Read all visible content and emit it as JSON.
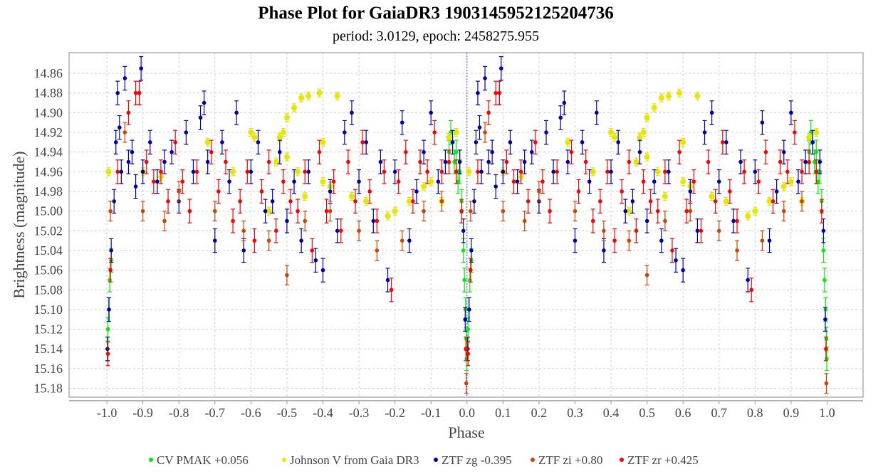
{
  "chart_data": {
    "type": "scatter",
    "title": "Phase Plot for GaiaDR3 1903145952125204736",
    "subtitle": "period: 3.0129, epoch: 2458275.955",
    "xlabel": "Phase",
    "ylabel": "Brightness (magnitude)",
    "xlim": [
      -1.105,
      1.1
    ],
    "ylim": [
      15.189,
      14.839
    ],
    "y_inverted": true,
    "grid": true,
    "legend_placement": "bottom",
    "x_ticks": [
      "-1.0",
      "-0.9",
      "-0.8",
      "-0.7",
      "-0.6",
      "-0.5",
      "-0.4",
      "-0.3",
      "-0.2",
      "-0.1",
      "0.0",
      "0.1",
      "0.2",
      "0.3",
      "0.4",
      "0.5",
      "0.6",
      "0.7",
      "0.8",
      "0.9",
      "1.0"
    ],
    "y_ticks": [
      "14.86",
      "14.88",
      "14.90",
      "14.92",
      "14.94",
      "14.96",
      "14.98",
      "15.00",
      "15.02",
      "15.04",
      "15.06",
      "15.08",
      "15.10",
      "15.12",
      "15.14",
      "15.16",
      "15.18"
    ],
    "note_points_repeated_at_phase_minus_1": true,
    "series": [
      {
        "name": "CV PMAK +0.056",
        "color": "#00ee00",
        "error": 0.012,
        "points": [
          [
            0.95,
            14.94
          ],
          [
            0.955,
            14.92
          ],
          [
            0.96,
            14.93
          ],
          [
            0.965,
            14.95
          ],
          [
            0.97,
            14.96
          ],
          [
            0.97,
            14.94
          ],
          [
            0.975,
            14.97
          ],
          [
            0.98,
            14.95
          ],
          [
            0.98,
            14.96
          ],
          [
            0.985,
            14.99
          ],
          [
            0.99,
            15.04
          ],
          [
            0.993,
            15.07
          ],
          [
            0.996,
            15.1
          ],
          [
            0.998,
            15.13
          ],
          [
            0.999,
            15.15
          ],
          [
            0.001,
            15.14
          ],
          [
            0.003,
            15.12
          ],
          [
            0.005,
            15.1
          ],
          [
            0.008,
            15.07
          ],
          [
            0.012,
            15.05
          ]
        ]
      },
      {
        "name": "Johnson V from Gaia DR3",
        "color": "#e6e600",
        "error": 0.004,
        "points": [
          [
            0.005,
            14.96
          ],
          [
            0.1,
            14.96
          ],
          [
            0.15,
            14.965
          ],
          [
            0.28,
            14.93
          ],
          [
            0.35,
            14.96
          ],
          [
            0.4,
            14.92
          ],
          [
            0.41,
            14.925
          ],
          [
            0.45,
            15.0
          ],
          [
            0.47,
            14.95
          ],
          [
            0.48,
            14.925
          ],
          [
            0.49,
            14.92
          ],
          [
            0.5,
            14.905
          ],
          [
            0.5,
            14.945
          ],
          [
            0.52,
            14.895
          ],
          [
            0.53,
            14.96
          ],
          [
            0.54,
            14.885
          ],
          [
            0.55,
            14.985
          ],
          [
            0.56,
            14.883
          ],
          [
            0.59,
            14.88
          ],
          [
            0.6,
            14.97
          ],
          [
            0.6,
            14.93
          ],
          [
            0.62,
            14.975
          ],
          [
            0.64,
            14.883
          ],
          [
            0.68,
            14.985
          ],
          [
            0.72,
            14.99
          ],
          [
            0.78,
            15.005
          ],
          [
            0.8,
            15.0
          ],
          [
            0.84,
            14.99
          ],
          [
            0.88,
            14.975
          ],
          [
            0.9,
            14.97
          ],
          [
            0.93,
            14.99
          ],
          [
            0.95,
            14.925
          ],
          [
            0.97,
            14.92
          ]
        ]
      },
      {
        "name": "ZTF zg -0.395",
        "color": "#0000aa",
        "error": 0.012,
        "points": [
          [
            0.002,
            15.14
          ],
          [
            0.006,
            15.1
          ],
          [
            0.012,
            15.04
          ],
          [
            0.02,
            14.99
          ],
          [
            0.025,
            14.93
          ],
          [
            0.03,
            14.88
          ],
          [
            0.035,
            14.915
          ],
          [
            0.04,
            14.96
          ],
          [
            0.05,
            14.865
          ],
          [
            0.06,
            14.95
          ],
          [
            0.07,
            14.94
          ],
          [
            0.08,
            14.975
          ],
          [
            0.09,
            14.88
          ],
          [
            0.095,
            14.855
          ],
          [
            0.1,
            14.96
          ],
          [
            0.12,
            14.93
          ],
          [
            0.14,
            14.97
          ],
          [
            0.16,
            14.95
          ],
          [
            0.18,
            14.94
          ],
          [
            0.2,
            14.99
          ],
          [
            0.22,
            14.92
          ],
          [
            0.24,
            14.96
          ],
          [
            0.26,
            14.905
          ],
          [
            0.27,
            14.89
          ],
          [
            0.28,
            14.95
          ],
          [
            0.3,
            15.03
          ],
          [
            0.32,
            14.93
          ],
          [
            0.34,
            14.97
          ],
          [
            0.36,
            14.9
          ],
          [
            0.38,
            15.04
          ],
          [
            0.4,
            14.96
          ],
          [
            0.42,
            14.93
          ],
          [
            0.44,
            15.0
          ],
          [
            0.46,
            14.99
          ],
          [
            0.48,
            14.94
          ],
          [
            0.5,
            15.01
          ],
          [
            0.52,
            14.97
          ],
          [
            0.54,
            15.03
          ],
          [
            0.56,
            14.96
          ],
          [
            0.58,
            15.05
          ],
          [
            0.6,
            15.06
          ],
          [
            0.62,
            14.98
          ],
          [
            0.64,
            15.02
          ],
          [
            0.66,
            14.92
          ],
          [
            0.68,
            14.9
          ],
          [
            0.7,
            14.97
          ],
          [
            0.72,
            14.93
          ],
          [
            0.74,
            15.01
          ],
          [
            0.76,
            14.95
          ],
          [
            0.78,
            15.07
          ],
          [
            0.8,
            14.96
          ],
          [
            0.82,
            14.91
          ],
          [
            0.84,
            15.03
          ],
          [
            0.86,
            14.98
          ],
          [
            0.88,
            14.94
          ],
          [
            0.9,
            14.9
          ],
          [
            0.92,
            14.97
          ],
          [
            0.94,
            14.95
          ],
          [
            0.96,
            14.93
          ],
          [
            0.98,
            14.95
          ],
          [
            0.99,
            15.02
          ],
          [
            0.995,
            15.11
          ]
        ]
      },
      {
        "name": "ZTF zi +0.80",
        "color": "#cc4400",
        "error": 0.01,
        "points": [
          [
            0.01,
            15.0
          ],
          [
            0.05,
            14.92
          ],
          [
            0.1,
            15.0
          ],
          [
            0.16,
            15.01
          ],
          [
            0.2,
            14.98
          ],
          [
            0.3,
            15.0
          ],
          [
            0.38,
            15.02
          ],
          [
            0.45,
            15.03
          ],
          [
            0.5,
            15.065
          ],
          [
            0.55,
            15.01
          ],
          [
            0.62,
            15.0
          ],
          [
            0.7,
            15.02
          ],
          [
            0.75,
            15.04
          ],
          [
            0.82,
            15.03
          ],
          [
            0.88,
            15.0
          ],
          [
            0.93,
            14.99
          ],
          [
            0.998,
            15.175
          ]
        ]
      },
      {
        "name": "ZTF zr +0.425",
        "color": "#ff0000",
        "error": 0.012,
        "points": [
          [
            0.003,
            15.145
          ],
          [
            0.01,
            15.06
          ],
          [
            0.03,
            14.96
          ],
          [
            0.06,
            14.9
          ],
          [
            0.08,
            14.88
          ],
          [
            0.09,
            14.88
          ],
          [
            0.11,
            14.95
          ],
          [
            0.13,
            14.97
          ],
          [
            0.15,
            14.96
          ],
          [
            0.17,
            14.99
          ],
          [
            0.19,
            14.93
          ],
          [
            0.21,
            14.97
          ],
          [
            0.23,
            15.0
          ],
          [
            0.25,
            14.96
          ],
          [
            0.29,
            14.94
          ],
          [
            0.31,
            14.98
          ],
          [
            0.33,
            14.95
          ],
          [
            0.35,
            15.01
          ],
          [
            0.37,
            14.99
          ],
          [
            0.39,
            14.96
          ],
          [
            0.41,
            15.03
          ],
          [
            0.43,
            14.98
          ],
          [
            0.45,
            14.95
          ],
          [
            0.47,
            15.02
          ],
          [
            0.49,
            14.97
          ],
          [
            0.51,
            14.99
          ],
          [
            0.53,
            15.0
          ],
          [
            0.55,
            14.96
          ],
          [
            0.57,
            15.04
          ],
          [
            0.59,
            14.94
          ],
          [
            0.61,
            15.0
          ],
          [
            0.63,
            14.97
          ],
          [
            0.65,
            15.02
          ],
          [
            0.67,
            14.95
          ],
          [
            0.69,
            14.99
          ],
          [
            0.71,
            14.93
          ],
          [
            0.73,
            14.98
          ],
          [
            0.75,
            15.01
          ],
          [
            0.77,
            14.96
          ],
          [
            0.79,
            15.08
          ],
          [
            0.81,
            14.97
          ],
          [
            0.83,
            14.94
          ],
          [
            0.85,
            14.99
          ],
          [
            0.87,
            14.95
          ],
          [
            0.89,
            14.96
          ],
          [
            0.91,
            14.92
          ],
          [
            0.93,
            14.96
          ],
          [
            0.95,
            14.95
          ],
          [
            0.97,
            14.96
          ],
          [
            0.985,
            15.0
          ],
          [
            0.997,
            15.14
          ]
        ]
      }
    ]
  }
}
